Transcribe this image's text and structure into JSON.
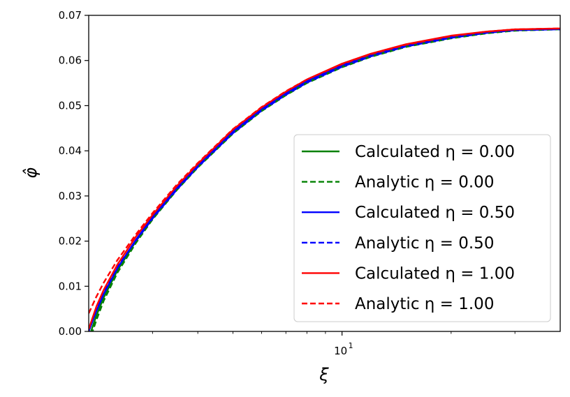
{
  "chart_data": {
    "type": "line",
    "xscale": "log",
    "xlim": [
      2.0,
      40.0
    ],
    "ylim": [
      0.0,
      0.07
    ],
    "xlabel": "ξ",
    "ylabel": "φ̂",
    "x_ticks": [
      {
        "value": 10,
        "label": "10",
        "exp": "1"
      }
    ],
    "y_ticks": [
      "0.00",
      "0.01",
      "0.02",
      "0.03",
      "0.04",
      "0.05",
      "0.06",
      "0.07"
    ],
    "legend_position": "lower-right",
    "series": [
      {
        "name": "Calculated η = 0.00",
        "color": "#008000",
        "style": "solid",
        "x": [
          2.0,
          2.1,
          2.2,
          2.4,
          2.7,
          3.0,
          3.5,
          4.0,
          5.0,
          6.0,
          7.0,
          8.0,
          10.0,
          12.0,
          15.0,
          20.0,
          25.0,
          30.0,
          40.0
        ],
        "y": [
          -0.0015,
          0.0035,
          0.0075,
          0.0135,
          0.02,
          0.025,
          0.0315,
          0.0365,
          0.044,
          0.049,
          0.0525,
          0.0552,
          0.0587,
          0.061,
          0.0632,
          0.0651,
          0.0661,
          0.0667,
          0.067
        ]
      },
      {
        "name": "Analytic η = 0.00",
        "color": "#008000",
        "style": "dashed",
        "x": [
          2.0,
          2.1,
          2.2,
          2.4,
          2.7,
          3.0,
          3.5,
          4.0,
          5.0,
          6.0,
          7.0,
          8.0,
          10.0,
          12.0,
          15.0,
          20.0,
          25.0,
          30.0,
          40.0
        ],
        "y": [
          -0.0025,
          0.0025,
          0.0068,
          0.013,
          0.0196,
          0.0248,
          0.0313,
          0.0363,
          0.0438,
          0.0488,
          0.0523,
          0.055,
          0.0585,
          0.0608,
          0.063,
          0.0649,
          0.066,
          0.0666,
          0.0669
        ]
      },
      {
        "name": "Calculated η = 0.50",
        "color": "#0000ff",
        "style": "solid",
        "x": [
          2.0,
          2.1,
          2.2,
          2.4,
          2.7,
          3.0,
          3.5,
          4.0,
          5.0,
          6.0,
          7.0,
          8.0,
          10.0,
          12.0,
          15.0,
          20.0,
          25.0,
          30.0,
          40.0
        ],
        "y": [
          0.0,
          0.0045,
          0.0083,
          0.014,
          0.0203,
          0.0253,
          0.0318,
          0.0368,
          0.0443,
          0.0493,
          0.0528,
          0.0555,
          0.059,
          0.0613,
          0.0634,
          0.0653,
          0.0663,
          0.0668,
          0.067
        ]
      },
      {
        "name": "Analytic η = 0.50",
        "color": "#0000ff",
        "style": "dashed",
        "x": [
          2.0,
          2.1,
          2.2,
          2.4,
          2.7,
          3.0,
          3.5,
          4.0,
          5.0,
          6.0,
          7.0,
          8.0,
          10.0,
          12.0,
          15.0,
          20.0,
          25.0,
          30.0,
          40.0
        ],
        "y": [
          0.0005,
          0.005,
          0.0088,
          0.0143,
          0.0201,
          0.025,
          0.0314,
          0.0364,
          0.0439,
          0.0489,
          0.0524,
          0.0551,
          0.0586,
          0.0609,
          0.0631,
          0.065,
          0.0661,
          0.0667,
          0.0669
        ]
      },
      {
        "name": "Calculated η = 1.00",
        "color": "#ff0000",
        "style": "solid",
        "x": [
          2.0,
          2.1,
          2.2,
          2.4,
          2.7,
          3.0,
          3.5,
          4.0,
          5.0,
          6.0,
          7.0,
          8.0,
          10.0,
          12.0,
          15.0,
          20.0,
          25.0,
          30.0,
          40.0
        ],
        "y": [
          0.0005,
          0.0055,
          0.0092,
          0.0148,
          0.021,
          0.0258,
          0.0322,
          0.0371,
          0.0447,
          0.0496,
          0.0531,
          0.0558,
          0.0593,
          0.0615,
          0.0636,
          0.0655,
          0.0664,
          0.0669,
          0.0671
        ]
      },
      {
        "name": "Analytic η = 1.00",
        "color": "#ff0000",
        "style": "dashed",
        "x": [
          2.0,
          2.1,
          2.2,
          2.4,
          2.7,
          3.0,
          3.5,
          4.0,
          5.0,
          6.0,
          7.0,
          8.0,
          10.0,
          12.0,
          15.0,
          20.0,
          25.0,
          30.0,
          40.0
        ],
        "y": [
          0.004,
          0.0077,
          0.0108,
          0.0158,
          0.0215,
          0.0262,
          0.0325,
          0.0373,
          0.0448,
          0.0497,
          0.0532,
          0.0558,
          0.0592,
          0.0614,
          0.0635,
          0.0654,
          0.0664,
          0.0669,
          0.0671
        ]
      }
    ]
  }
}
